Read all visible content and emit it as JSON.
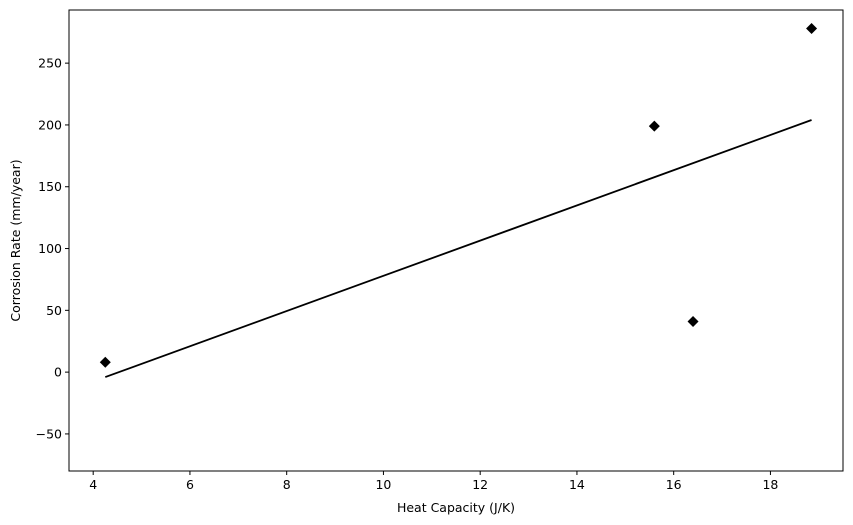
{
  "chart_data": {
    "type": "scatter",
    "title": "",
    "xlabel": "Heat Capacity (J/K)",
    "ylabel": "Corrosion Rate (mm/year)",
    "xlim": [
      3.5,
      19.5
    ],
    "ylim": [
      -80,
      293
    ],
    "xticks": [
      4,
      6,
      8,
      10,
      12,
      14,
      16,
      18
    ],
    "yticks": [
      -50,
      0,
      50,
      100,
      150,
      200,
      250
    ],
    "grid": false,
    "legend": "none",
    "series": [
      {
        "type": "scatter",
        "marker": "diamond",
        "color": "#000000",
        "points": [
          {
            "x": 4.25,
            "y": 8
          },
          {
            "x": 15.6,
            "y": 199
          },
          {
            "x": 16.4,
            "y": 41
          },
          {
            "x": 18.85,
            "y": 278
          }
        ]
      },
      {
        "type": "line",
        "color": "#000000",
        "points": [
          {
            "x": 4.25,
            "y": -4
          },
          {
            "x": 18.85,
            "y": 204
          }
        ]
      }
    ]
  }
}
